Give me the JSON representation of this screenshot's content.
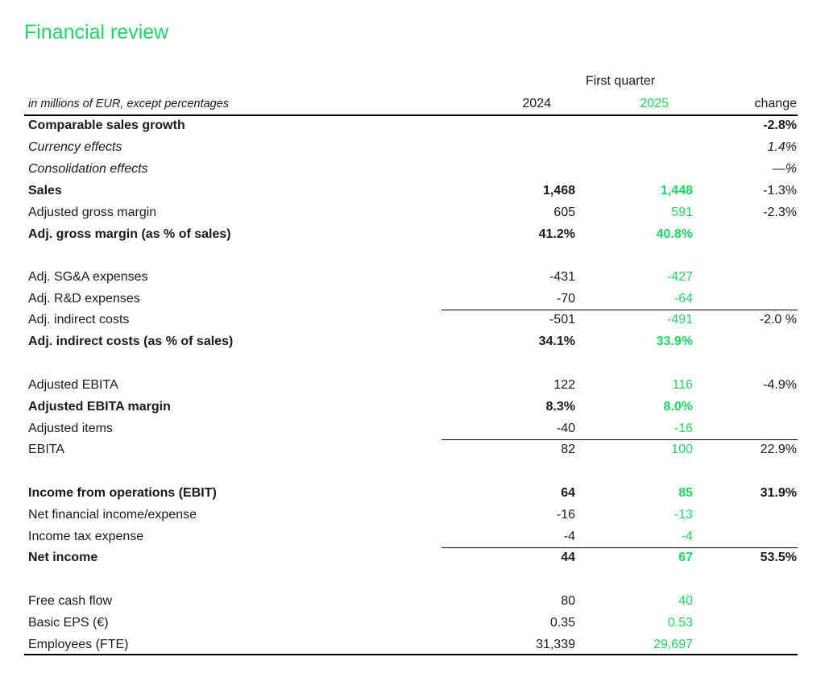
{
  "title": "Financial review",
  "header": {
    "period": "First quarter",
    "units": "in millions of EUR, except percentages",
    "col_2024": "2024",
    "col_2025": "2025",
    "col_change": "change"
  },
  "rows": [
    {
      "label": "Comparable sales growth",
      "v2024": "",
      "v2025": "",
      "change": "-2.8%"
    },
    {
      "label": "Currency effects",
      "v2024": "",
      "v2025": "",
      "change": "1.4%"
    },
    {
      "label": "Consolidation effects",
      "v2024": "",
      "v2025": "",
      "change": "—%"
    },
    {
      "label": "Sales",
      "v2024": "1,468",
      "v2025": "1,448",
      "change": "-1.3%"
    },
    {
      "label": "Adjusted gross margin",
      "v2024": "605",
      "v2025": "591",
      "change": "-2.3%"
    },
    {
      "label": "Adj. gross margin (as % of sales)",
      "v2024": "41.2%",
      "v2025": "40.8%",
      "change": ""
    },
    {
      "label": "Adj. SG&A expenses",
      "v2024": "-431",
      "v2025": "-427",
      "change": ""
    },
    {
      "label": "Adj. R&D expenses",
      "v2024": "-70",
      "v2025": "-64",
      "change": ""
    },
    {
      "label": "Adj. indirect costs",
      "v2024": "-501",
      "v2025": "-491",
      "change": "-2.0 %"
    },
    {
      "label": "Adj. indirect costs (as % of sales)",
      "v2024": "34.1%",
      "v2025": "33.9%",
      "change": ""
    },
    {
      "label": "Adjusted EBITA",
      "v2024": "122",
      "v2025": "116",
      "change": "-4.9%"
    },
    {
      "label": "Adjusted EBITA margin",
      "v2024": "8.3%",
      "v2025": "8.0%",
      "change": ""
    },
    {
      "label": "Adjusted items",
      "v2024": "-40",
      "v2025": "-16",
      "change": ""
    },
    {
      "label": "EBITA",
      "v2024": "82",
      "v2025": "100",
      "change": "22.9%"
    },
    {
      "label": "Income from operations (EBIT)",
      "v2024": "64",
      "v2025": "85",
      "change": "31.9%"
    },
    {
      "label": "Net financial income/expense",
      "v2024": "-16",
      "v2025": "-13",
      "change": ""
    },
    {
      "label": "Income tax expense",
      "v2024": "-4",
      "v2025": "-4",
      "change": ""
    },
    {
      "label": "Net income",
      "v2024": "44",
      "v2025": "67",
      "change": "53.5%"
    },
    {
      "label": "Free cash flow",
      "v2024": "80",
      "v2025": "40",
      "change": ""
    },
    {
      "label": "Basic EPS (€)",
      "v2024": "0.35",
      "v2025": "0.53",
      "change": ""
    },
    {
      "label": "Employees (FTE)",
      "v2024": "31,339",
      "v2025": "29,697",
      "change": ""
    }
  ]
}
